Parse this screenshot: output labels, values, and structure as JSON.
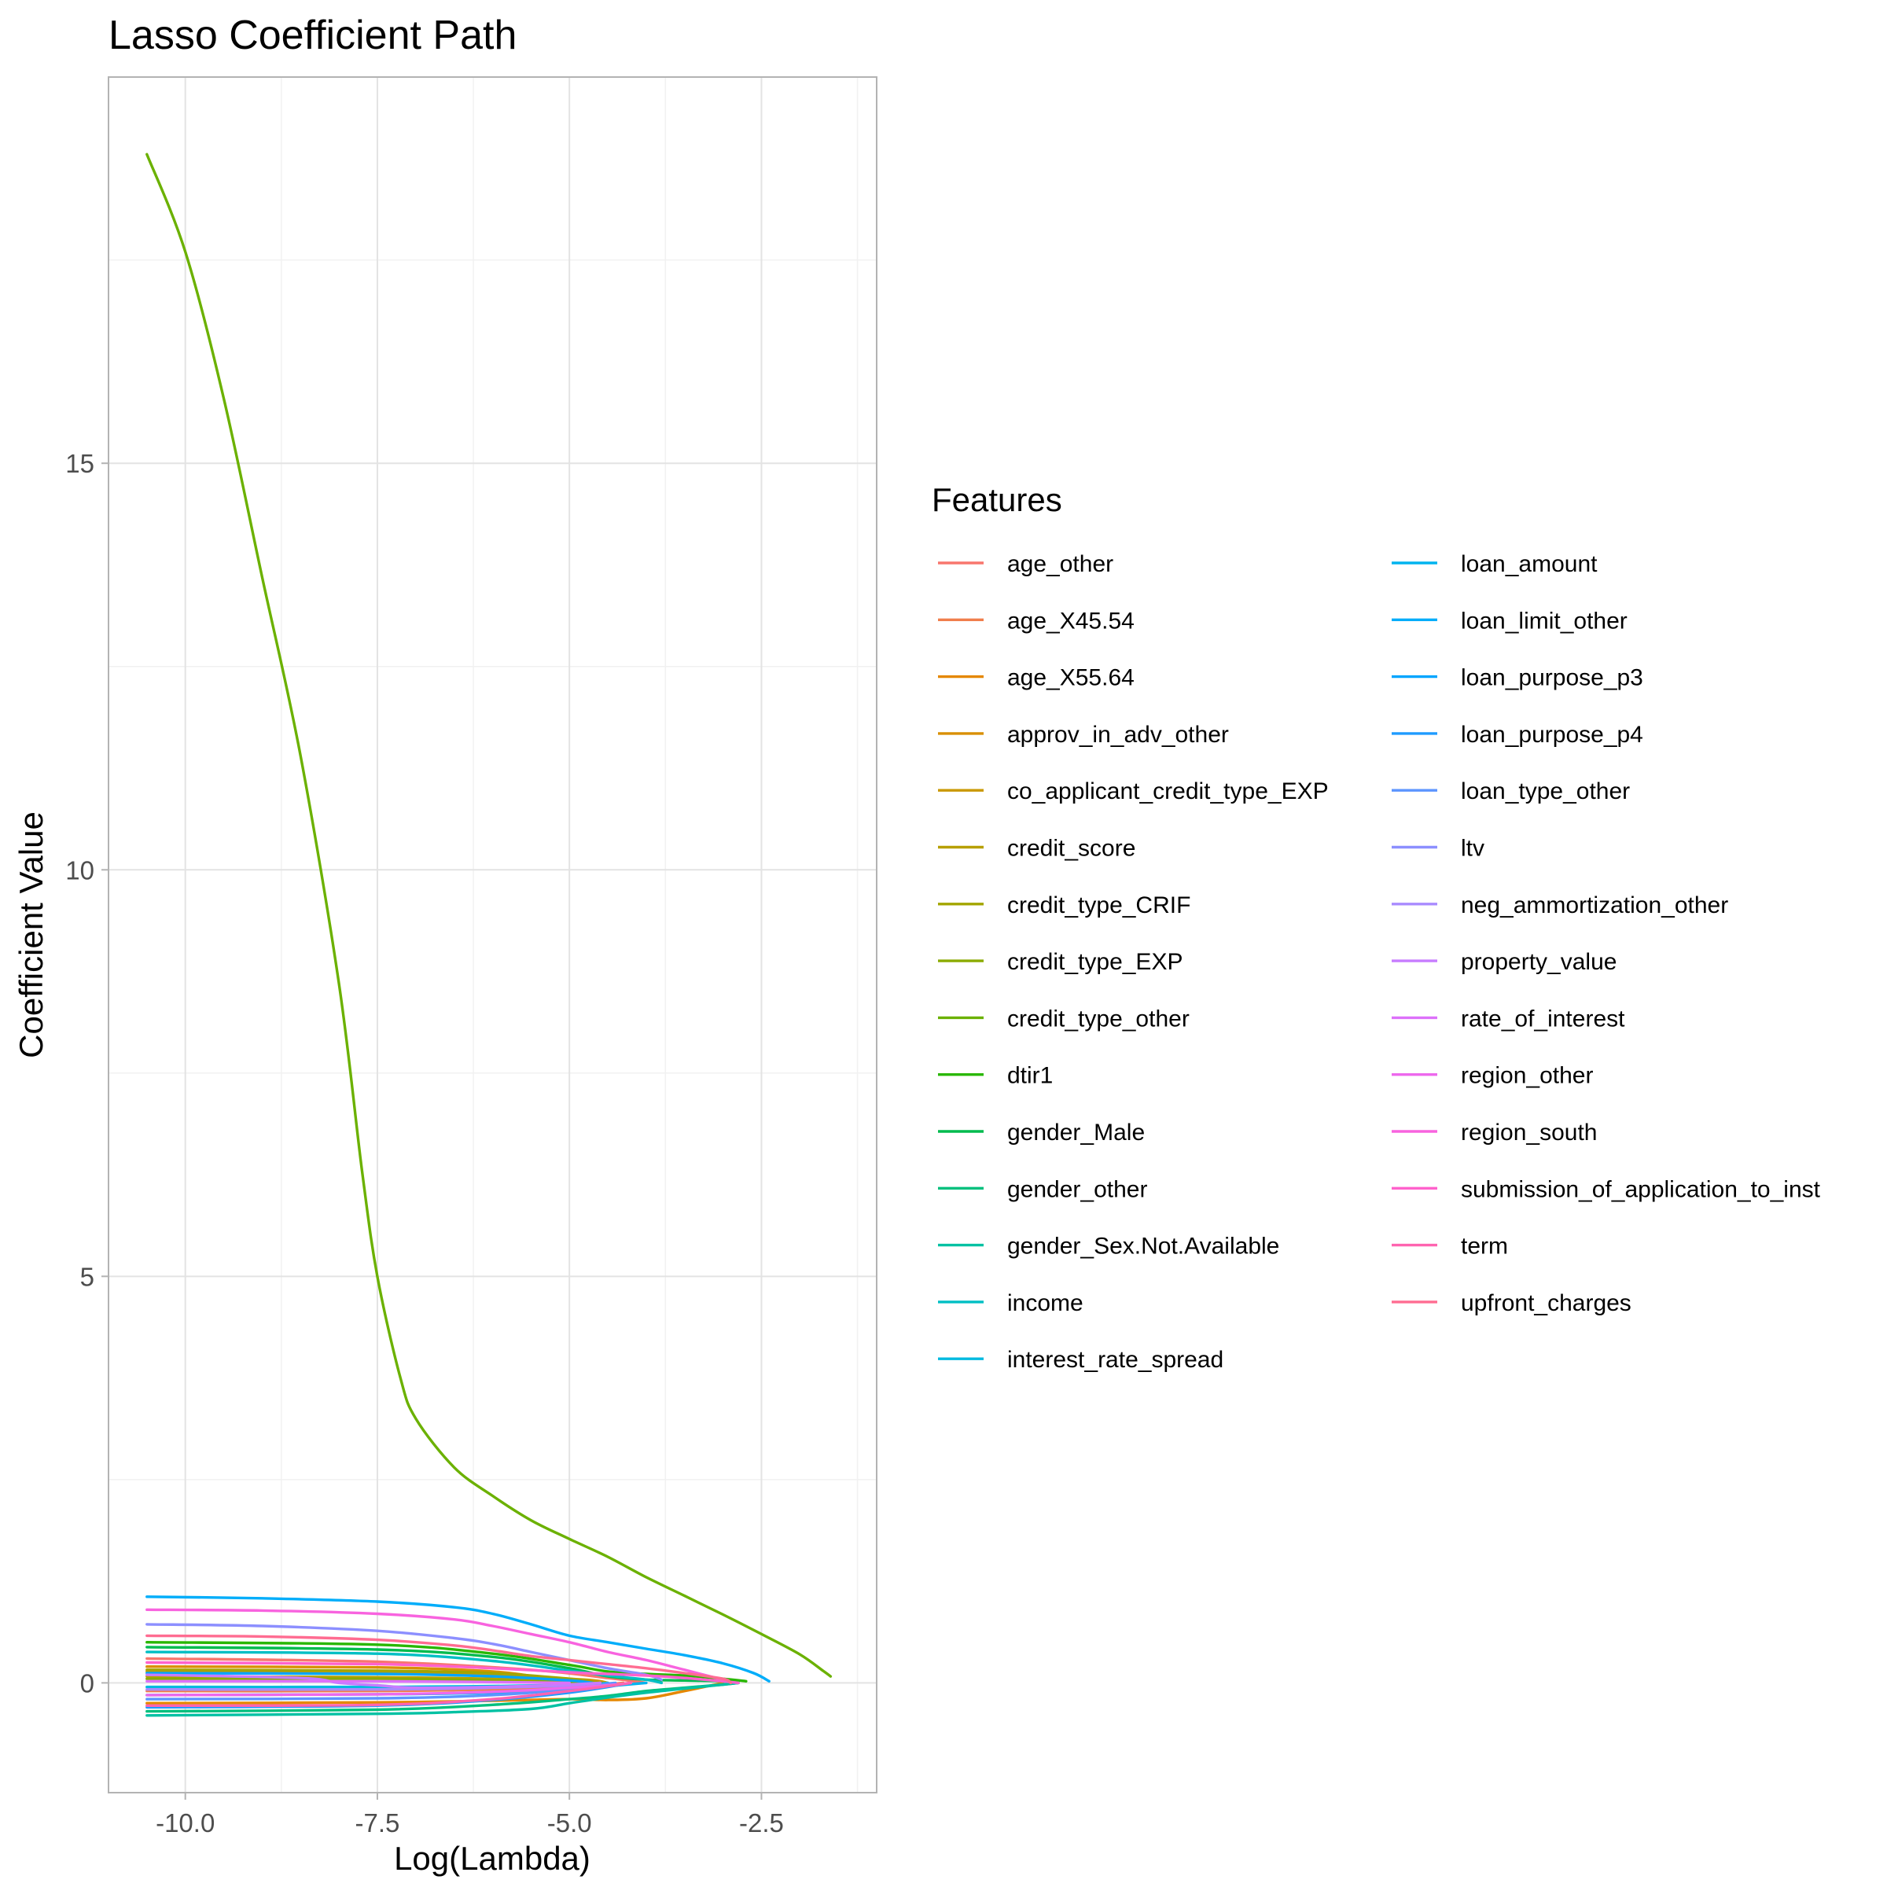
{
  "chart_data": {
    "type": "line",
    "title": "Lasso Coefficient Path",
    "xlabel": "Log(Lambda)",
    "ylabel": "Coefficient Value",
    "xlim": [
      -11.0,
      -1.0
    ],
    "ylim": [
      -1.35,
      19.75
    ],
    "x_ticks": [
      -10.0,
      -7.5,
      -5.0,
      -2.5
    ],
    "x_tick_labels": [
      "-10.0",
      "-7.5",
      "-5.0",
      "-2.5"
    ],
    "y_ticks": [
      0,
      5,
      10,
      15
    ],
    "y_tick_labels": [
      "0",
      "5",
      "10",
      "15"
    ],
    "grid": true,
    "legend": {
      "title": "Features",
      "position": "right",
      "columns": 2
    },
    "series": [
      {
        "name": "age_other",
        "color": "#F8766D",
        "points": [
          [
            -10.5,
            0.3
          ],
          [
            -7.5,
            0.26
          ],
          [
            -5.5,
            0.16
          ],
          [
            -4.5,
            0.06
          ],
          [
            -4.0,
            0.0
          ]
        ]
      },
      {
        "name": "age_X45.54",
        "color": "#F07E4C",
        "points": [
          [
            -10.5,
            -0.1
          ],
          [
            -7.5,
            -0.1
          ],
          [
            -6.0,
            -0.08
          ],
          [
            -4.8,
            -0.04
          ],
          [
            -4.3,
            0.0
          ]
        ]
      },
      {
        "name": "age_X55.64",
        "color": "#E58700",
        "points": [
          [
            -10.5,
            -0.25
          ],
          [
            -7.5,
            -0.24
          ],
          [
            -6.0,
            -0.22
          ],
          [
            -5.0,
            -0.2
          ],
          [
            -4.5,
            -0.21
          ],
          [
            -4.0,
            -0.19
          ],
          [
            -3.5,
            -0.1
          ],
          [
            -3.0,
            0.0
          ]
        ]
      },
      {
        "name": "approv_in_adv_other",
        "color": "#D98F00",
        "points": [
          [
            -10.5,
            0.2
          ],
          [
            -7.5,
            0.19
          ],
          [
            -6.0,
            0.14
          ],
          [
            -5.3,
            0.05
          ],
          [
            -5.1,
            0.0
          ]
        ]
      },
      {
        "name": "co_applicant_credit_type_EXP",
        "color": "#C99800",
        "points": [
          [
            -10.5,
            0.14
          ],
          [
            -7.5,
            0.13
          ],
          [
            -6.0,
            0.09
          ],
          [
            -4.8,
            0.04
          ],
          [
            -4.5,
            0.0
          ]
        ]
      },
      {
        "name": "credit_score",
        "color": "#B79F00",
        "points": [
          [
            -10.5,
            0.08
          ],
          [
            -7.5,
            0.07
          ],
          [
            -6.0,
            0.05
          ],
          [
            -5.0,
            0.02
          ],
          [
            -4.7,
            0.0
          ]
        ]
      },
      {
        "name": "credit_type_CRIF",
        "color": "#A3A500",
        "points": [
          [
            -10.5,
            0.16
          ],
          [
            -7.5,
            0.15
          ],
          [
            -6.0,
            0.12
          ],
          [
            -5.0,
            0.05
          ],
          [
            -4.6,
            0.0
          ]
        ]
      },
      {
        "name": "credit_type_EXP",
        "color": "#8BAB00",
        "points": [
          [
            -10.5,
            0.05
          ],
          [
            -7.5,
            0.05
          ],
          [
            -6.0,
            0.03
          ],
          [
            -5.0,
            0.01
          ],
          [
            -4.8,
            0.0
          ]
        ]
      },
      {
        "name": "credit_type_other",
        "color": "#6BB100",
        "points": [
          [
            -10.5,
            18.8
          ],
          [
            -10.0,
            17.6
          ],
          [
            -9.5,
            15.8
          ],
          [
            -9.0,
            13.6
          ],
          [
            -8.5,
            11.4
          ],
          [
            -8.0,
            8.6
          ],
          [
            -7.7,
            6.3
          ],
          [
            -7.5,
            5.0
          ],
          [
            -7.2,
            3.75
          ],
          [
            -7.0,
            3.25
          ],
          [
            -6.5,
            2.65
          ],
          [
            -6.0,
            2.3
          ],
          [
            -5.5,
            2.0
          ],
          [
            -5.0,
            1.77
          ],
          [
            -4.5,
            1.55
          ],
          [
            -4.0,
            1.3
          ],
          [
            -3.5,
            1.07
          ],
          [
            -3.0,
            0.84
          ],
          [
            -2.5,
            0.6
          ],
          [
            -2.0,
            0.35
          ],
          [
            -1.7,
            0.15
          ],
          [
            -1.6,
            0.08
          ]
        ]
      },
      {
        "name": "dtir1",
        "color": "#29B700",
        "points": [
          [
            -10.5,
            0.5
          ],
          [
            -7.5,
            0.47
          ],
          [
            -6.0,
            0.36
          ],
          [
            -5.0,
            0.22
          ],
          [
            -4.5,
            0.14
          ],
          [
            -4.0,
            0.11
          ],
          [
            -3.5,
            0.09
          ],
          [
            -3.0,
            0.05
          ],
          [
            -2.7,
            0.02
          ]
        ]
      },
      {
        "name": "gender_Male",
        "color": "#00BB4E",
        "points": [
          [
            -10.5,
            0.44
          ],
          [
            -7.5,
            0.41
          ],
          [
            -6.0,
            0.32
          ],
          [
            -5.0,
            0.18
          ],
          [
            -4.5,
            0.08
          ],
          [
            -4.0,
            0.04
          ],
          [
            -3.5,
            0.03
          ],
          [
            -3.0,
            0.02
          ],
          [
            -2.8,
            0.0
          ]
        ]
      },
      {
        "name": "gender_other",
        "color": "#00BF7D",
        "points": [
          [
            -10.5,
            -0.35
          ],
          [
            -7.5,
            -0.33
          ],
          [
            -6.0,
            -0.27
          ],
          [
            -5.0,
            -0.2
          ],
          [
            -4.5,
            -0.16
          ],
          [
            -4.0,
            -0.1
          ],
          [
            -3.5,
            -0.06
          ],
          [
            -3.0,
            -0.02
          ],
          [
            -2.8,
            0.0
          ]
        ]
      },
      {
        "name": "gender_Sex.Not.Available",
        "color": "#00C1A3",
        "points": [
          [
            -10.5,
            -0.4
          ],
          [
            -7.5,
            -0.38
          ],
          [
            -6.5,
            -0.36
          ],
          [
            -5.5,
            -0.32
          ],
          [
            -5.0,
            -0.25
          ],
          [
            -4.5,
            -0.18
          ],
          [
            -4.0,
            -0.12
          ],
          [
            -3.5,
            -0.07
          ],
          [
            -3.0,
            -0.02
          ],
          [
            -2.8,
            0.0
          ]
        ]
      },
      {
        "name": "income",
        "color": "#00BFC4",
        "points": [
          [
            -10.5,
            0.38
          ],
          [
            -7.5,
            0.36
          ],
          [
            -6.0,
            0.27
          ],
          [
            -5.0,
            0.15
          ],
          [
            -4.5,
            0.09
          ],
          [
            -4.0,
            0.04
          ],
          [
            -3.8,
            0.0
          ]
        ]
      },
      {
        "name": "interest_rate_spread",
        "color": "#00BAE0",
        "points": [
          [
            -10.5,
            -0.05
          ],
          [
            -7.5,
            -0.05
          ],
          [
            -6.0,
            -0.04
          ],
          [
            -4.8,
            -0.02
          ],
          [
            -4.5,
            0.0
          ]
        ]
      },
      {
        "name": "loan_amount",
        "color": "#00B4EF",
        "points": [
          [
            -10.5,
            -0.15
          ],
          [
            -7.5,
            -0.14
          ],
          [
            -6.0,
            -0.12
          ],
          [
            -5.0,
            -0.08
          ],
          [
            -4.5,
            -0.04
          ],
          [
            -4.0,
            0.0
          ]
        ]
      },
      {
        "name": "loan_limit_other",
        "color": "#00ADFA",
        "points": [
          [
            -10.5,
            1.06
          ],
          [
            -9.0,
            1.04
          ],
          [
            -7.5,
            1.0
          ],
          [
            -6.5,
            0.93
          ],
          [
            -6.0,
            0.85
          ],
          [
            -5.5,
            0.72
          ],
          [
            -5.0,
            0.58
          ],
          [
            -4.5,
            0.5
          ],
          [
            -4.0,
            0.42
          ],
          [
            -3.5,
            0.34
          ],
          [
            -3.0,
            0.24
          ],
          [
            -2.6,
            0.12
          ],
          [
            -2.4,
            0.02
          ]
        ]
      },
      {
        "name": "loan_purpose_p3",
        "color": "#00A5FF",
        "points": [
          [
            -10.5,
            0.12
          ],
          [
            -7.5,
            0.11
          ],
          [
            -6.0,
            0.08
          ],
          [
            -5.0,
            0.03
          ],
          [
            -4.7,
            0.0
          ]
        ]
      },
      {
        "name": "loan_purpose_p4",
        "color": "#1E9BFF",
        "points": [
          [
            -10.5,
            -0.3
          ],
          [
            -7.5,
            -0.28
          ],
          [
            -6.0,
            -0.21
          ],
          [
            -5.0,
            -0.12
          ],
          [
            -4.5,
            -0.05
          ],
          [
            -4.2,
            0.0
          ]
        ]
      },
      {
        "name": "loan_type_other",
        "color": "#5C95FF",
        "points": [
          [
            -10.5,
            -0.2
          ],
          [
            -7.5,
            -0.19
          ],
          [
            -6.0,
            -0.15
          ],
          [
            -5.0,
            -0.08
          ],
          [
            -4.6,
            -0.02
          ],
          [
            -4.4,
            0.0
          ]
        ]
      },
      {
        "name": "ltv",
        "color": "#8C8FFF",
        "points": [
          [
            -10.5,
            0.72
          ],
          [
            -9.0,
            0.7
          ],
          [
            -7.5,
            0.64
          ],
          [
            -6.5,
            0.55
          ],
          [
            -6.0,
            0.48
          ],
          [
            -5.5,
            0.38
          ],
          [
            -5.0,
            0.28
          ],
          [
            -4.5,
            0.18
          ],
          [
            -4.0,
            0.1
          ],
          [
            -3.8,
            0.04
          ]
        ]
      },
      {
        "name": "neg_ammortization_other",
        "color": "#A98BFF",
        "points": [
          [
            -10.5,
            -0.08
          ],
          [
            -7.5,
            -0.08
          ],
          [
            -6.0,
            -0.06
          ],
          [
            -5.0,
            -0.03
          ],
          [
            -4.6,
            0.0
          ]
        ]
      },
      {
        "name": "property_value",
        "color": "#C77CFF",
        "points": [
          [
            -10.5,
            0.1
          ],
          [
            -8.5,
            0.06
          ],
          [
            -8.0,
            0.0
          ],
          [
            -7.5,
            -0.03
          ],
          [
            -7.0,
            -0.06
          ],
          [
            -6.0,
            -0.05
          ],
          [
            -5.0,
            -0.02
          ],
          [
            -4.6,
            0.0
          ]
        ]
      },
      {
        "name": "rate_of_interest",
        "color": "#DD71FA",
        "points": [
          [
            -10.5,
            0.02
          ],
          [
            -7.5,
            0.02
          ],
          [
            -6.0,
            0.01
          ],
          [
            -5.0,
            0.0
          ]
        ]
      },
      {
        "name": "region_other",
        "color": "#ED68ED",
        "points": [
          [
            -10.5,
            -0.15
          ],
          [
            -7.5,
            -0.14
          ],
          [
            -6.0,
            -0.11
          ],
          [
            -5.0,
            -0.06
          ],
          [
            -4.5,
            -0.03
          ],
          [
            -4.2,
            0.0
          ]
        ]
      },
      {
        "name": "region_south",
        "color": "#F863DF",
        "points": [
          [
            -10.5,
            0.9
          ],
          [
            -9.0,
            0.89
          ],
          [
            -7.5,
            0.85
          ],
          [
            -6.5,
            0.78
          ],
          [
            -6.0,
            0.7
          ],
          [
            -5.5,
            0.6
          ],
          [
            -5.0,
            0.5
          ],
          [
            -4.5,
            0.38
          ],
          [
            -4.0,
            0.28
          ],
          [
            -3.5,
            0.16
          ],
          [
            -3.0,
            0.04
          ]
        ]
      },
      {
        "name": "submission_of_application_to_inst",
        "color": "#FF61CC",
        "points": [
          [
            -10.5,
            0.25
          ],
          [
            -7.5,
            0.23
          ],
          [
            -6.0,
            0.18
          ],
          [
            -5.0,
            0.13
          ],
          [
            -4.5,
            0.11
          ],
          [
            -4.0,
            0.09
          ],
          [
            -3.5,
            0.06
          ],
          [
            -3.0,
            0.02
          ],
          [
            -2.8,
            0.0
          ]
        ]
      },
      {
        "name": "term",
        "color": "#FF64B0",
        "points": [
          [
            -10.5,
            -0.28
          ],
          [
            -7.5,
            -0.27
          ],
          [
            -6.0,
            -0.2
          ],
          [
            -5.0,
            -0.1
          ],
          [
            -4.5,
            -0.04
          ],
          [
            -4.2,
            0.0
          ]
        ]
      },
      {
        "name": "upfront_charges",
        "color": "#FF6C91",
        "points": [
          [
            -10.5,
            0.58
          ],
          [
            -9.0,
            0.57
          ],
          [
            -7.5,
            0.53
          ],
          [
            -6.5,
            0.46
          ],
          [
            -6.0,
            0.4
          ],
          [
            -5.5,
            0.33
          ],
          [
            -5.0,
            0.28
          ],
          [
            -4.5,
            0.23
          ],
          [
            -4.0,
            0.18
          ],
          [
            -3.5,
            0.12
          ],
          [
            -3.0,
            0.05
          ],
          [
            -2.9,
            0.0
          ]
        ]
      }
    ]
  }
}
